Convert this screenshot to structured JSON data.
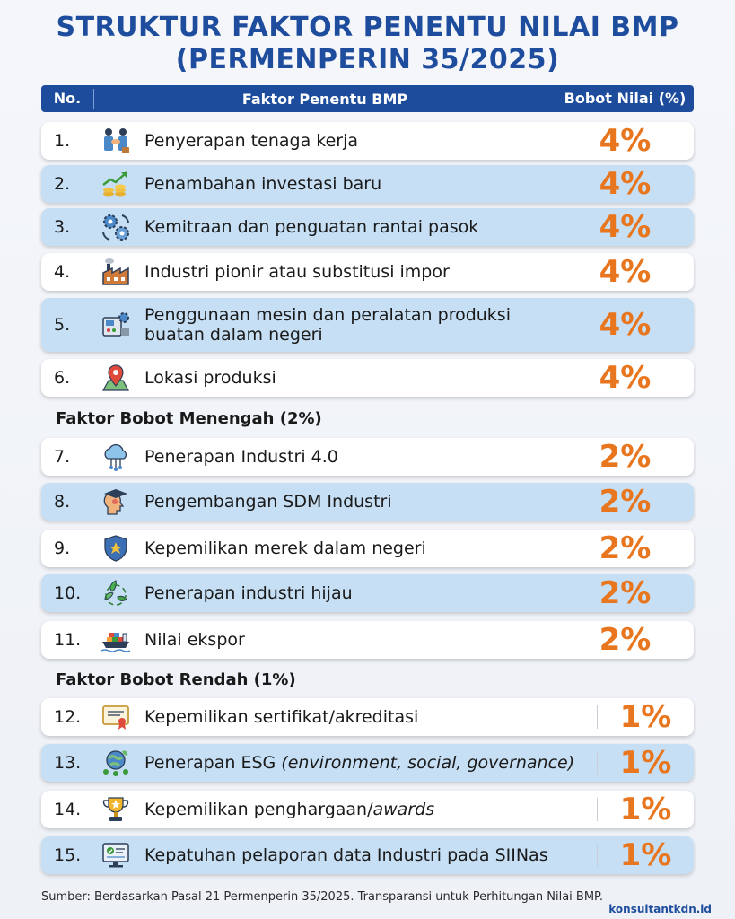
{
  "title": {
    "line1": "STRUKTUR FAKTOR PENENTU NILAI BMP",
    "line2": "(PERMENPERIN 35/2025)"
  },
  "header": {
    "no": "No.",
    "faktor": "Faktor Penentu BMP",
    "bobot": "Bobot Nilai (%)"
  },
  "sections": {
    "menengah": "Faktor Bobot Menengah (2%)",
    "rendah": "Faktor Bobot Rendah (1%)"
  },
  "rows": [
    {
      "no": "1.",
      "label": "Penyerapan tenaga kerja",
      "value": "4%",
      "icon": "handshake-icon"
    },
    {
      "no": "2.",
      "label": "Penambahan investasi baru",
      "value": "4%",
      "icon": "investment-growth-icon"
    },
    {
      "no": "3.",
      "label": "Kemitraan dan penguatan rantai pasok",
      "value": "4%",
      "icon": "gears-cycle-icon"
    },
    {
      "no": "4.",
      "label": "Industri pionir atau substitusi impor",
      "value": "4%",
      "icon": "factory-icon"
    },
    {
      "no": "5.",
      "label": "Penggunaan mesin dan peralatan produksi",
      "label2": "buatan dalam negeri",
      "value": "4%",
      "icon": "machine-icon"
    },
    {
      "no": "6.",
      "label": "Lokasi produksi",
      "value": "4%",
      "icon": "map-pin-icon"
    },
    {
      "no": "7.",
      "label": "Penerapan Industri 4.0",
      "value": "2%",
      "icon": "cloud-network-icon"
    },
    {
      "no": "8.",
      "label": "Pengembangan SDM Industri",
      "value": "2%",
      "icon": "graduate-head-icon"
    },
    {
      "no": "9.",
      "label": "Kepemilikan merek dalam negeri",
      "value": "2%",
      "icon": "shield-star-icon"
    },
    {
      "no": "10.",
      "label": "Penerapan industri hijau",
      "value": "2%",
      "icon": "recycle-leaf-icon"
    },
    {
      "no": "11.",
      "label": "Nilai ekspor",
      "value": "2%",
      "icon": "cargo-ship-icon"
    },
    {
      "no": "12.",
      "label": "Kepemilikan sertifikat/akreditasi",
      "value": "1%",
      "icon": "certificate-icon"
    },
    {
      "no": "13.",
      "label": "Penerapan ESG ",
      "label_italic": "(environment, social, governance)",
      "value": "1%",
      "icon": "esg-globe-icon"
    },
    {
      "no": "14.",
      "label": "Kepemilikan penghargaan/",
      "label_italic": "awards",
      "value": "1%",
      "icon": "trophy-icon"
    },
    {
      "no": "15.",
      "label": "Kepatuhan pelaporan data Industri pada SIINas",
      "value": "1%",
      "icon": "monitor-check-icon"
    }
  ],
  "footer": "Sumber: Berdasarkan Pasal 21 Permenperin 35/2025. Transparansi untuk Perhitungan Nilai BMP.",
  "brand": "konsultantkdn.id",
  "colors": {
    "title": "#1f4d9e",
    "header_bg": "#1d4c9c",
    "percent": "#e8761e",
    "row_blue": "#c6dff4"
  }
}
